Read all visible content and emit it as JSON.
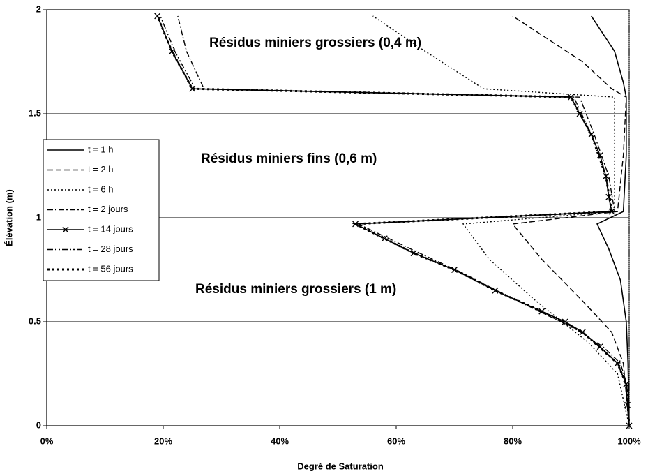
{
  "chart_data": {
    "type": "line",
    "x_label": "Degré de Saturation",
    "y_label": "Élévation (m)",
    "xlim": [
      0,
      100
    ],
    "ylim": [
      0,
      2
    ],
    "xticks": [
      {
        "value": 0,
        "label": "0%"
      },
      {
        "value": 20,
        "label": "20%"
      },
      {
        "value": 40,
        "label": "40%"
      },
      {
        "value": 60,
        "label": "60%"
      },
      {
        "value": 80,
        "label": "80%"
      },
      {
        "value": 100,
        "label": "100%"
      }
    ],
    "yticks": [
      0,
      0.5,
      1,
      1.5,
      2
    ],
    "grid": true,
    "legend": "left",
    "annotations": [
      "Résidus miniers grossiers (0,4 m)",
      "Résidus miniers fins (0,6 m)",
      "Résidus miniers grossiers (1 m)"
    ],
    "series": [
      {
        "name": "t = 1 h",
        "color": "#000000",
        "line_style": "solid",
        "x": [
          100,
          99.8,
          99.5,
          98.5,
          96.5,
          94.5,
          99,
          99.5,
          99.5,
          99,
          97.5,
          93.5
        ],
        "values": [
          0,
          0.3,
          0.5,
          0.7,
          0.85,
          0.97,
          1.03,
          1.3,
          1.58,
          1.65,
          1.8,
          1.97
        ]
      },
      {
        "name": "t = 2 h",
        "color": "#000000",
        "line_style": "dashed",
        "x": [
          100,
          99,
          97,
          92,
          85,
          80,
          98,
          99,
          99.5,
          97,
          92,
          80
        ],
        "values": [
          0,
          0.3,
          0.45,
          0.6,
          0.8,
          0.97,
          1.03,
          1.3,
          1.58,
          1.62,
          1.75,
          1.97
        ]
      },
      {
        "name": "t = 6 h",
        "color": "#000000",
        "line_style": "dotted",
        "x": [
          100,
          98,
          93,
          84,
          76,
          71.5,
          97.5,
          97.5,
          97.5,
          75,
          65,
          56
        ],
        "values": [
          0,
          0.25,
          0.4,
          0.6,
          0.8,
          0.97,
          1.03,
          1.4,
          1.58,
          1.62,
          1.8,
          1.97
        ]
      },
      {
        "name": "t = 2 jours",
        "color": "#000000",
        "line_style": "dashdot",
        "x": [
          100,
          99.6,
          98.5,
          95.5,
          90,
          86,
          78,
          71,
          64,
          53.5,
          97.5,
          96.5,
          94,
          91.5,
          27,
          24,
          22.5
        ],
        "values": [
          0,
          0.2,
          0.3,
          0.38,
          0.48,
          0.53,
          0.64,
          0.74,
          0.83,
          0.97,
          1.03,
          1.2,
          1.4,
          1.58,
          1.62,
          1.8,
          1.97
        ]
      },
      {
        "name": "t = 14 jours",
        "color": "#000000",
        "line_style": "solid",
        "marker": "x",
        "x": [
          100,
          99.7,
          99.5,
          98,
          95,
          92,
          89,
          85,
          77,
          70,
          63,
          58,
          53,
          97,
          96.5,
          96,
          95,
          93.5,
          91.5,
          90,
          25,
          21.5,
          19
        ],
        "values": [
          0,
          0.1,
          0.2,
          0.3,
          0.38,
          0.45,
          0.5,
          0.55,
          0.65,
          0.75,
          0.83,
          0.9,
          0.97,
          1.03,
          1.1,
          1.2,
          1.3,
          1.4,
          1.5,
          1.58,
          1.62,
          1.8,
          1.97
        ]
      },
      {
        "name": "t = 28 jours",
        "color": "#000000",
        "line_style": "dashdotdot",
        "x": [
          100,
          99.5,
          98,
          92,
          85,
          77,
          70,
          63,
          53,
          97,
          96,
          93.5,
          90.5,
          25.5,
          22,
          19.5
        ],
        "values": [
          0,
          0.2,
          0.3,
          0.45,
          0.55,
          0.65,
          0.75,
          0.83,
          0.97,
          1.03,
          1.2,
          1.4,
          1.58,
          1.62,
          1.8,
          1.97
        ]
      },
      {
        "name": "t = 56 jours",
        "color": "#000000",
        "line_style": "thickdotted",
        "x": [
          100,
          99.5,
          98,
          92,
          85,
          77,
          70,
          63,
          53,
          97,
          96,
          93.5,
          90,
          25,
          21.5,
          19
        ],
        "values": [
          0,
          0.2,
          0.3,
          0.45,
          0.55,
          0.65,
          0.75,
          0.83,
          0.97,
          1.03,
          1.2,
          1.4,
          1.58,
          1.62,
          1.8,
          1.97
        ]
      }
    ]
  }
}
